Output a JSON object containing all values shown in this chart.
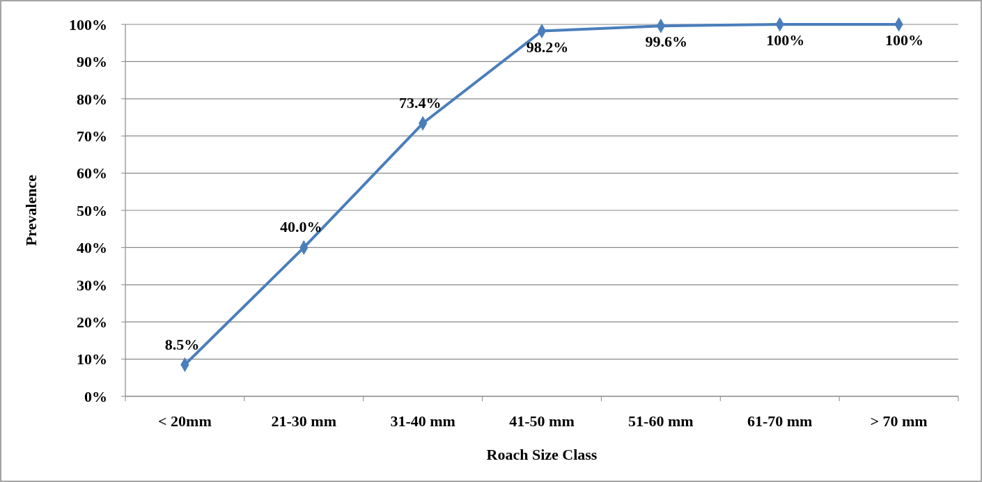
{
  "chart_data": {
    "type": "line",
    "xlabel": "Roach Size Class",
    "ylabel": "Prevalence",
    "categories": [
      "< 20mm",
      "21-30 mm",
      "31-40 mm",
      "41-50 mm",
      "51-60 mm",
      "61-70 mm",
      "> 70 mm"
    ],
    "series": [
      {
        "color": "#4a7ebb",
        "values": [
          8.5,
          40.0,
          73.4,
          98.2,
          99.6,
          100,
          100
        ],
        "value_labels": [
          "8.5%",
          "40.0%",
          "73.4%",
          "98.2%",
          "99.6%",
          "100%",
          "100%"
        ]
      }
    ],
    "ylim": [
      0,
      100
    ],
    "yticks": [
      {
        "value": 0,
        "label": "0%"
      },
      {
        "value": 10,
        "label": "10%"
      },
      {
        "value": 20,
        "label": "20%"
      },
      {
        "value": 30,
        "label": "30%"
      },
      {
        "value": 40,
        "label": "40%"
      },
      {
        "value": 50,
        "label": "50%"
      },
      {
        "value": 60,
        "label": "60%"
      },
      {
        "value": 70,
        "label": "70%"
      },
      {
        "value": 80,
        "label": "80%"
      },
      {
        "value": 90,
        "label": "90%"
      },
      {
        "value": 100,
        "label": "100%"
      }
    ],
    "grid": "y",
    "marker": "diamond",
    "line_style": "solid"
  }
}
